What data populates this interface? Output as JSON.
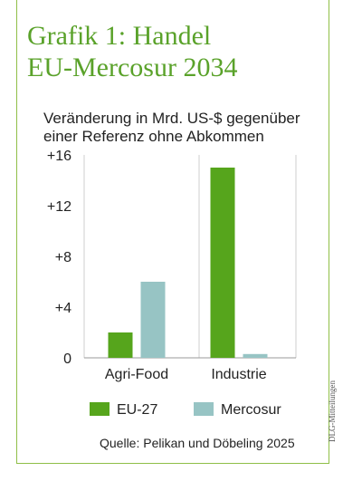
{
  "title_lines": [
    "Grafik 1: Handel",
    "EU-Mercosur 2034"
  ],
  "subtitle_lines": [
    "Veränderung in Mrd. US-$ gegenüber",
    "einer Referenz ohne Abkommen"
  ],
  "source": "Quelle: Pelikan und Döbeling 2025",
  "credit": "DLG-Mitteilungen",
  "chart_data": {
    "type": "bar",
    "title": "",
    "xlabel": "",
    "ylabel": "",
    "categories": [
      "Agri-Food",
      "Industrie"
    ],
    "series": [
      {
        "name": "EU-27",
        "values": [
          2,
          15
        ],
        "color": "#56a51c"
      },
      {
        "name": "Mercosur",
        "values": [
          6,
          0.3
        ],
        "color": "#97c4c4"
      }
    ],
    "ylim": [
      0,
      16
    ],
    "yticks": [
      0,
      4,
      8,
      12,
      16
    ],
    "ytick_labels": [
      "0",
      "+4",
      "+8",
      "+12",
      "+16"
    ],
    "grid": "vertical",
    "legend": "bottom"
  }
}
